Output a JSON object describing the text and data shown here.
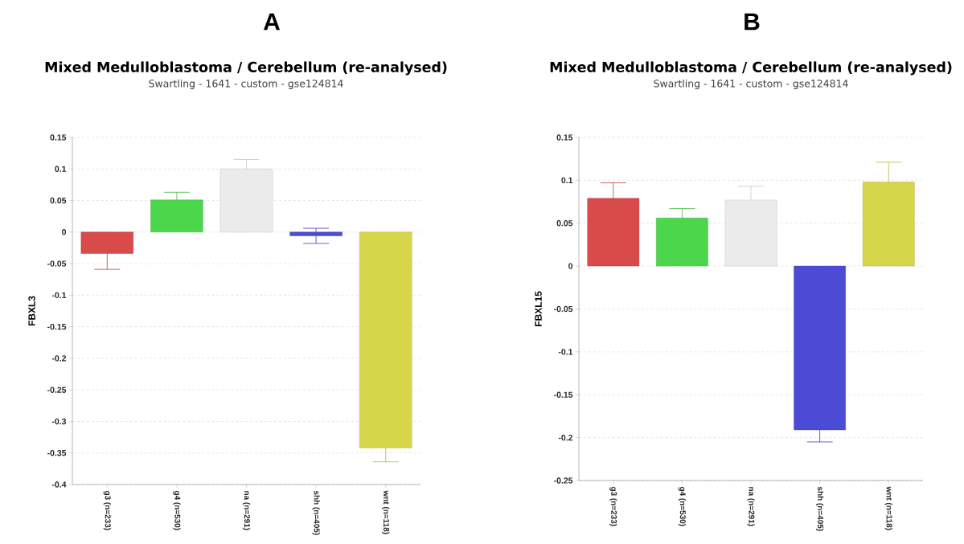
{
  "chart_data": [
    {
      "type": "bar",
      "title": "Mixed Medulloblastoma / Cerebellum (re-analysed)",
      "subtitle": "Swartling - 1641 - custom - gse124814",
      "annotations": [
        "A"
      ],
      "ylabel": "FBXL3",
      "categories": [
        "g3 (n=233)",
        "g4 (n=530)",
        "na (n=291)",
        "shh (n=405)",
        "wnt (n=118)"
      ],
      "values": [
        -0.034,
        0.051,
        0.1,
        -0.006,
        -0.342
      ],
      "errors": [
        0.025,
        0.012,
        0.015,
        0.012,
        0.022
      ],
      "colors": [
        "#d94a4a",
        "#4cd64c",
        "#ebebeb",
        "#4b4bd6",
        "#d6d64b"
      ],
      "ylim": [
        -0.4,
        0.15
      ],
      "yticks": [
        -0.4,
        -0.35,
        -0.3,
        -0.25,
        -0.2,
        -0.15,
        -0.1,
        -0.05,
        0,
        0.05,
        0.1,
        0.15
      ],
      "grid": "y"
    },
    {
      "type": "bar",
      "title": "Mixed Medulloblastoma / Cerebellum (re-analysed)",
      "subtitle": "Swartling - 1641 - custom - gse124814",
      "annotations": [
        "B"
      ],
      "ylabel": "FBXL15",
      "categories": [
        "g3 (n=233)",
        "g4 (n=530)",
        "na (n=291)",
        "shh (n=405)",
        "wnt (n=118)"
      ],
      "values": [
        0.079,
        0.056,
        0.077,
        -0.191,
        0.098
      ],
      "errors": [
        0.018,
        0.011,
        0.016,
        0.014,
        0.023
      ],
      "colors": [
        "#d94a4a",
        "#4cd64c",
        "#ebebeb",
        "#4b4bd6",
        "#d6d64b"
      ],
      "ylim": [
        -0.25,
        0.15
      ],
      "yticks": [
        -0.25,
        -0.2,
        -0.15,
        -0.1,
        -0.05,
        0,
        0.05,
        0.1,
        0.15
      ],
      "grid": "y"
    }
  ]
}
